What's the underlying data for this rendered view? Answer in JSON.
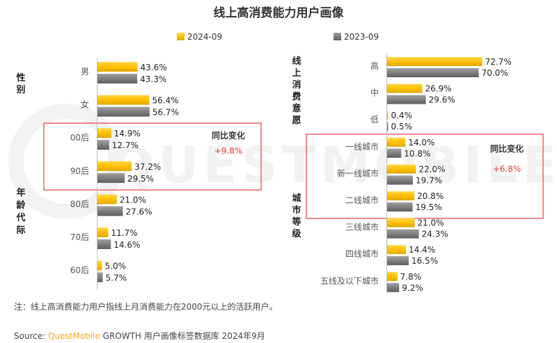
{
  "title": "线上高消费能力用户画像",
  "legend": [
    {
      "label": "2024-09",
      "color": "#FFC000"
    },
    {
      "label": "2023-09",
      "color": "#7F7F7F"
    }
  ],
  "watermark": "QUESTMOBILE",
  "left": {
    "groups": [
      {
        "label": "性别"
      },
      {
        "label": "年龄代际"
      }
    ],
    "highlight": {
      "title": "同比变化",
      "value": "+9.8%"
    }
  },
  "right": {
    "groups": [
      {
        "label": "线上消费意愿"
      },
      {
        "label": "城市等级"
      }
    ],
    "highlight": {
      "title": "同比变化",
      "value": "+6.8%"
    }
  },
  "note": "注：线上高消费能力用户指线上月消费能力在2000元以上的活跃用户。",
  "source": {
    "prefix": "Source: ",
    "brand": "QuestMobile",
    "product": " GROWTH",
    "rest": " 用户画像标签数据库 2024年9月"
  },
  "chart_data": [
    {
      "type": "bar",
      "orientation": "horizontal",
      "categories": [
        "男",
        "女",
        "00后",
        "90后",
        "80后",
        "70后",
        "60后"
      ],
      "series": [
        {
          "name": "2024-09",
          "values": [
            43.6,
            56.4,
            14.9,
            37.2,
            21.0,
            11.7,
            5.0
          ],
          "labels": [
            "43.6%",
            "56.4%",
            "14.9%",
            "37.2%",
            "21.0%",
            "11.7%",
            "5.0%"
          ]
        },
        {
          "name": "2023-09",
          "values": [
            43.3,
            56.7,
            12.7,
            29.5,
            27.6,
            14.6,
            5.7
          ],
          "labels": [
            "43.3%",
            "56.7%",
            "12.7%",
            "29.5%",
            "27.6%",
            "14.6%",
            "5.7%"
          ]
        }
      ],
      "xlim": [
        0,
        100
      ]
    },
    {
      "type": "bar",
      "orientation": "horizontal",
      "categories": [
        "高",
        "中",
        "低",
        "一线城市",
        "新一线城市",
        "二线城市",
        "三线城市",
        "四线城市",
        "五线及以下城市"
      ],
      "series": [
        {
          "name": "2024-09",
          "values": [
            72.7,
            26.9,
            0.4,
            14.0,
            22.0,
            20.8,
            21.0,
            14.4,
            7.8
          ],
          "labels": [
            "72.7%",
            "26.9%",
            "0.4%",
            "14.0%",
            "22.0%",
            "20.8%",
            "21.0%",
            "14.4%",
            "7.8%"
          ]
        },
        {
          "name": "2023-09",
          "values": [
            70.0,
            29.6,
            0.5,
            10.8,
            19.7,
            19.5,
            24.3,
            16.5,
            9.2
          ],
          "labels": [
            "70.0%",
            "29.6%",
            "0.5%",
            "10.8%",
            "19.7%",
            "19.5%",
            "24.3%",
            "16.5%",
            "9.2%"
          ]
        }
      ],
      "xlim": [
        0,
        100
      ]
    }
  ]
}
